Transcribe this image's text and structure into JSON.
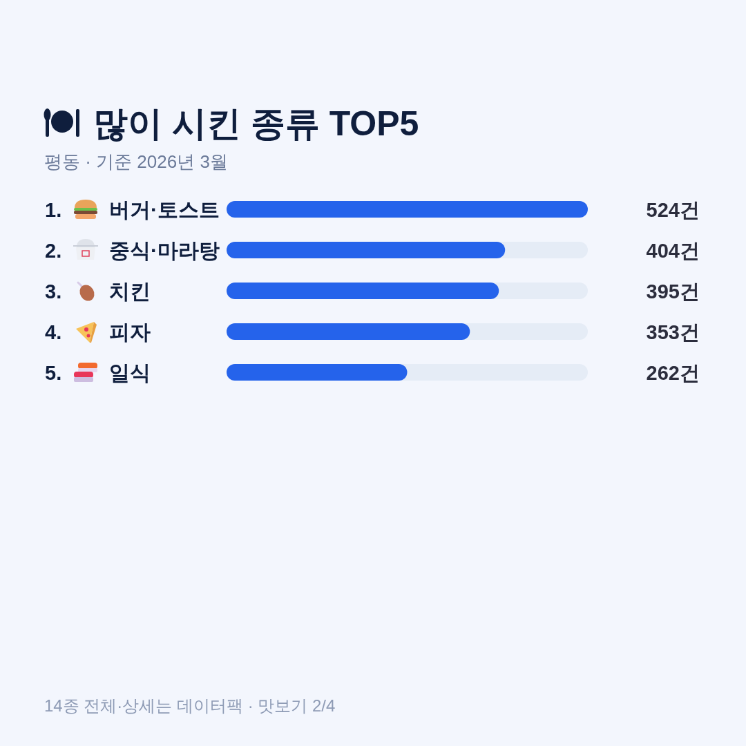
{
  "chart_data": {
    "type": "bar",
    "orientation": "horizontal",
    "title": "많이 시킨 종류 TOP5",
    "subtitle": "평동 · 기준 2026년 3월",
    "categories": [
      "버거·토스트",
      "중식·마라탕",
      "치킨",
      "피자",
      "일식"
    ],
    "values": [
      524,
      404,
      395,
      353,
      262
    ],
    "color": "#2563eb",
    "value_labels": [
      "524건",
      "404건",
      "395건",
      "353건",
      "262건"
    ],
    "xlim": [
      0,
      524
    ],
    "tick_labels": "y",
    "annotations": [
      "1.",
      "2.",
      "3.",
      "4.",
      "5.",
      "14종 전체·상세는 데이터팩 · 맛보기 2/4"
    ]
  }
}
